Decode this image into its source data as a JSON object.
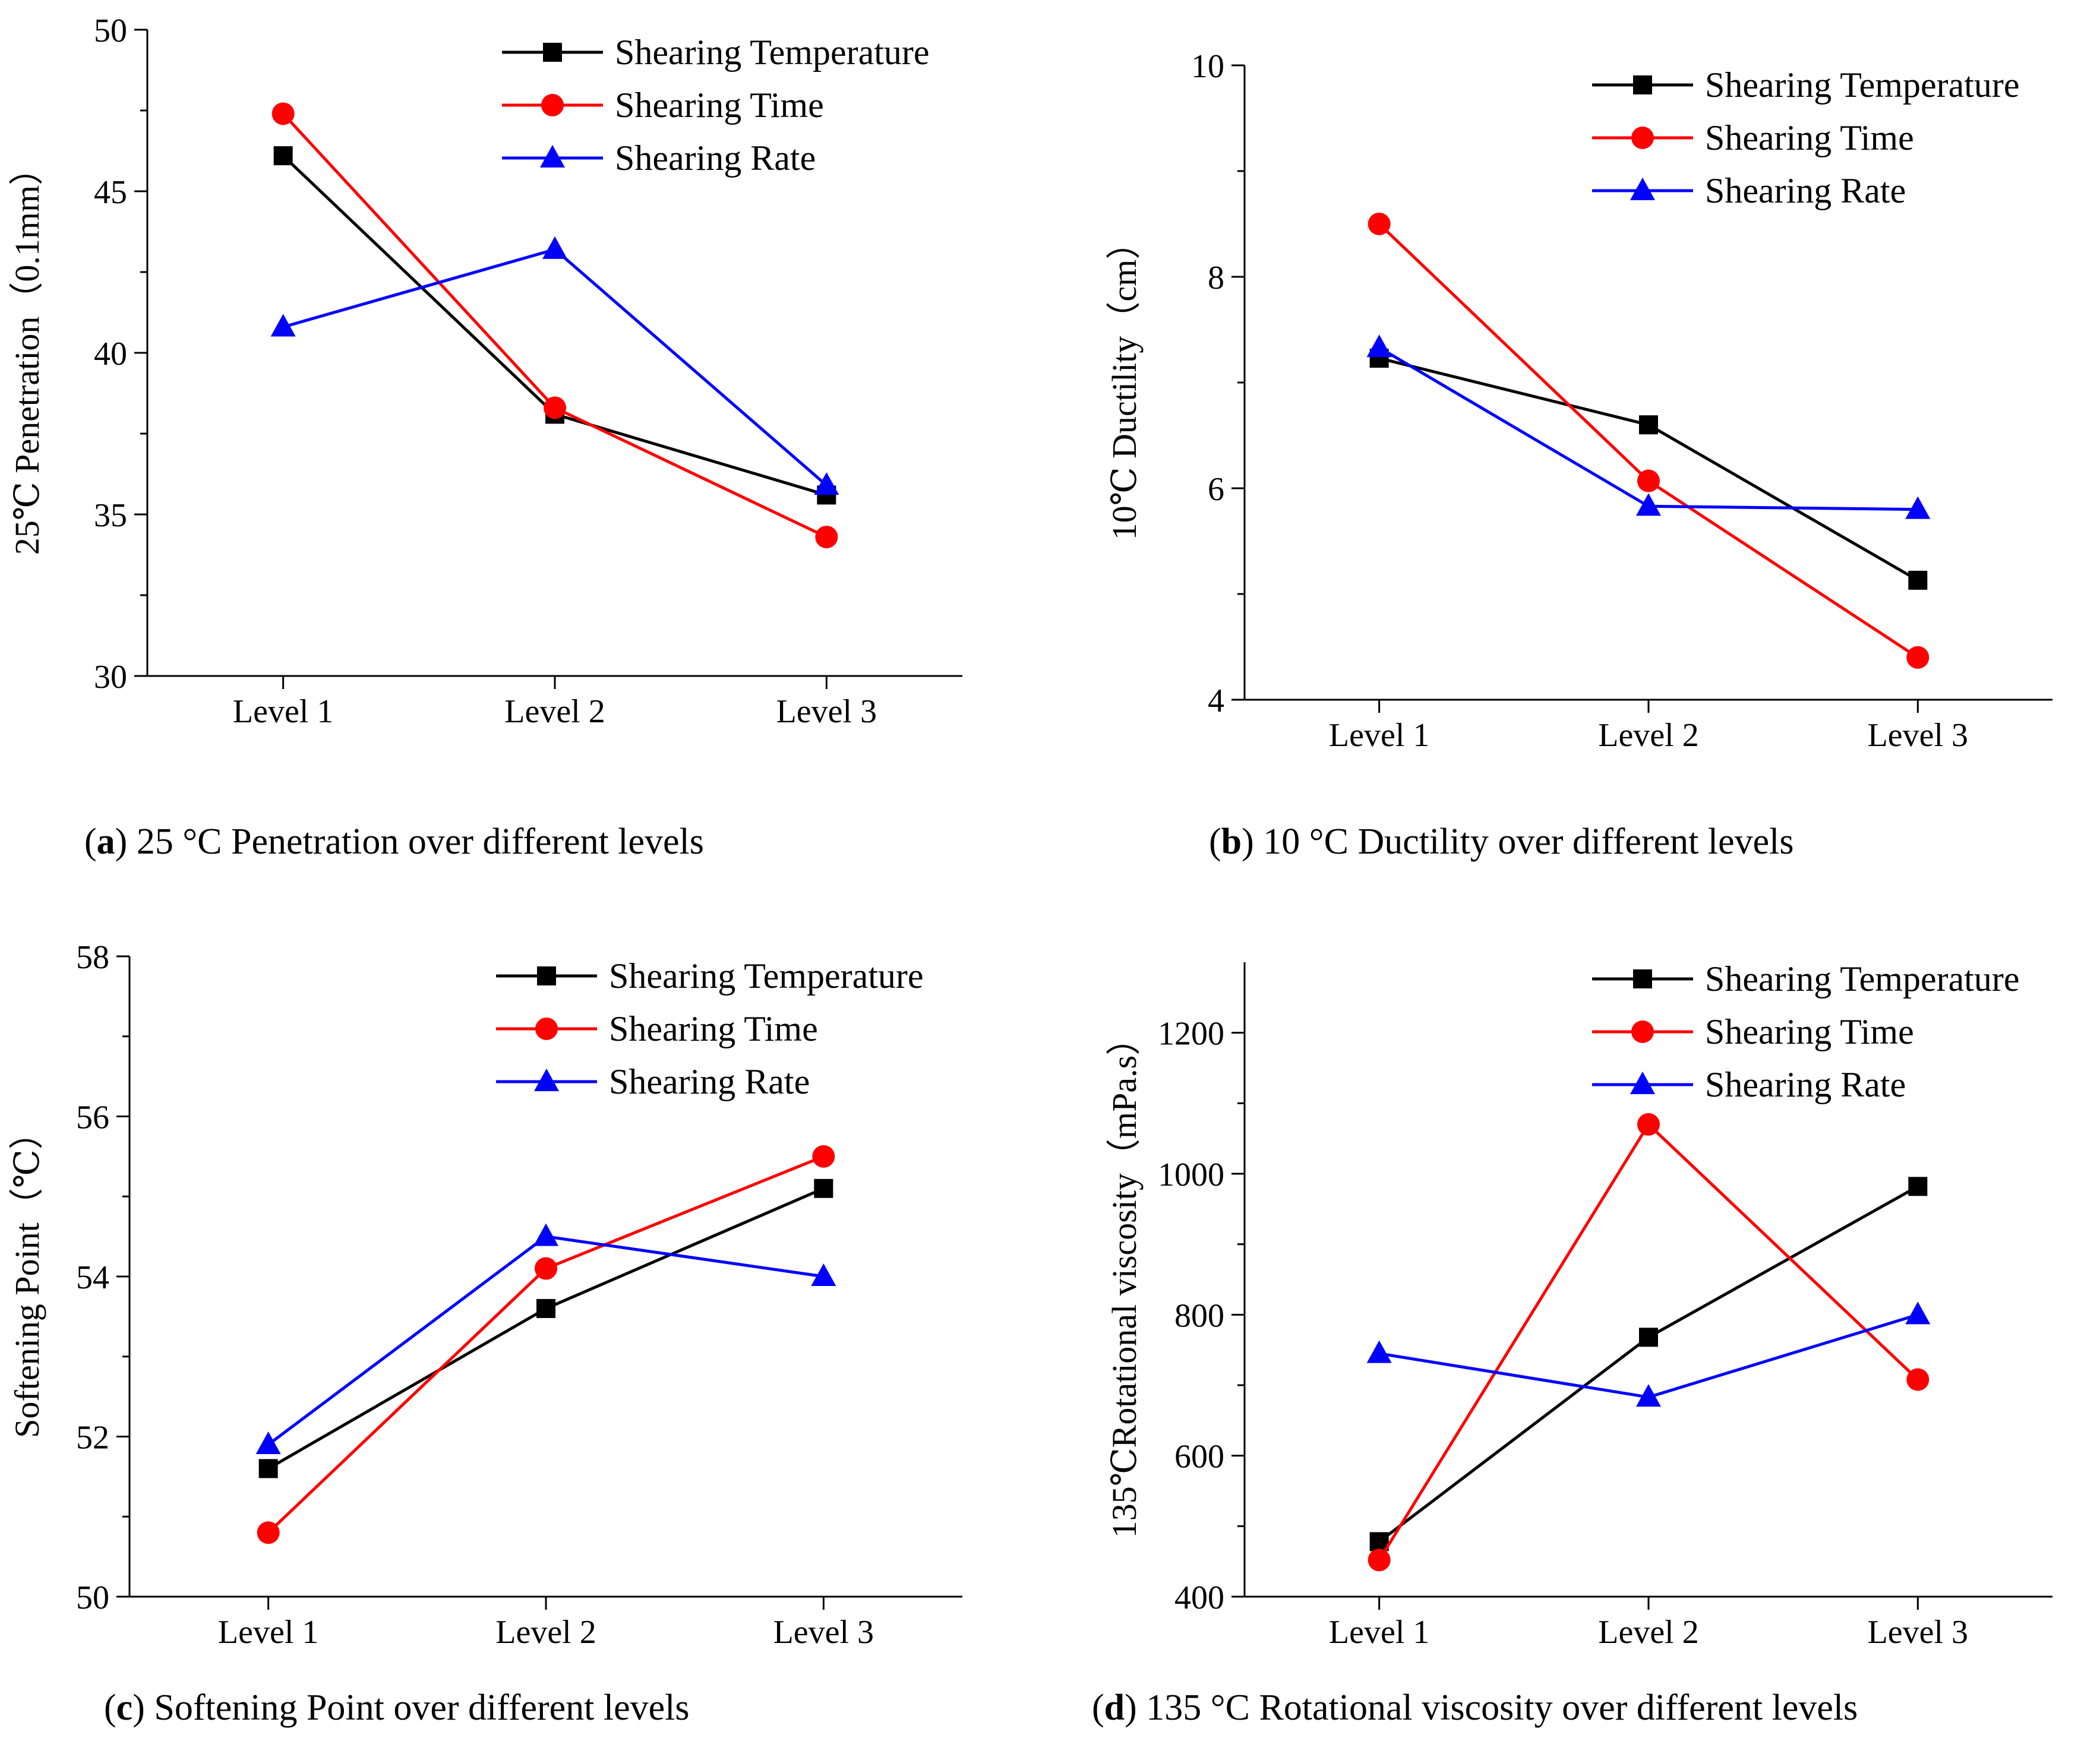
{
  "colors": {
    "temperature": "#000000",
    "time": "#ff0000",
    "rate": "#0000ff"
  },
  "captions": {
    "a": {
      "letter": "a",
      "text": "25 °C Penetration over different levels"
    },
    "b": {
      "letter": "b",
      "text": "10 °C Ductility over different levels"
    },
    "c": {
      "letter": "c",
      "text": "Softening Point over different levels"
    },
    "d": {
      "letter": "d",
      "text": "135 °C Rotational viscosity over different levels"
    }
  },
  "chart_data": [
    {
      "id": "a",
      "type": "line",
      "ylabel": "25℃ Penetration（0.1mm）",
      "categories": [
        "Level 1",
        "Level 2",
        "Level 3"
      ],
      "ylim": [
        30,
        50
      ],
      "yticks": [
        30,
        35,
        40,
        45,
        50
      ],
      "legend_position": "top-right",
      "series": [
        {
          "name": "Shearing Temperature",
          "marker": "square",
          "color": "#000000",
          "values": [
            46.1,
            38.1,
            35.6
          ]
        },
        {
          "name": "Shearing Time",
          "marker": "circle",
          "color": "#ff0000",
          "values": [
            47.4,
            38.3,
            34.3
          ]
        },
        {
          "name": "Shearing Rate",
          "marker": "triangle",
          "color": "#0000ff",
          "values": [
            40.8,
            43.2,
            35.9
          ]
        }
      ]
    },
    {
      "id": "b",
      "type": "line",
      "ylabel": "10℃ Ductility（cm）",
      "categories": [
        "Level 1",
        "Level 2",
        "Level 3"
      ],
      "ylim": [
        4,
        10
      ],
      "yticks": [
        4,
        6,
        8,
        10
      ],
      "legend_position": "top-right",
      "series": [
        {
          "name": "Shearing Temperature",
          "marker": "square",
          "color": "#000000",
          "values": [
            7.23,
            6.6,
            5.13
          ]
        },
        {
          "name": "Shearing Time",
          "marker": "circle",
          "color": "#ff0000",
          "values": [
            8.5,
            6.07,
            4.4
          ]
        },
        {
          "name": "Shearing Rate",
          "marker": "triangle",
          "color": "#0000ff",
          "values": [
            7.33,
            5.83,
            5.8
          ]
        }
      ]
    },
    {
      "id": "c",
      "type": "line",
      "ylabel": "Softening Point（℃）",
      "categories": [
        "Level 1",
        "Level 2",
        "Level 3"
      ],
      "ylim": [
        50,
        58
      ],
      "yticks": [
        50,
        52,
        54,
        56,
        58
      ],
      "legend_position": "top-right",
      "series": [
        {
          "name": "Shearing Temperature",
          "marker": "square",
          "color": "#000000",
          "values": [
            51.6,
            53.6,
            55.1
          ]
        },
        {
          "name": "Shearing Time",
          "marker": "circle",
          "color": "#ff0000",
          "values": [
            50.8,
            54.1,
            55.5
          ]
        },
        {
          "name": "Shearing Rate",
          "marker": "triangle",
          "color": "#0000ff",
          "values": [
            51.9,
            54.5,
            54.0
          ]
        }
      ]
    },
    {
      "id": "d",
      "type": "line",
      "ylabel": "135℃Rotational viscosity（mPa.s）",
      "categories": [
        "Level 1",
        "Level 2",
        "Level 3"
      ],
      "ylim": [
        400,
        1300
      ],
      "yticks": [
        400,
        600,
        800,
        1000,
        1200
      ],
      "legend_position": "top-right",
      "series": [
        {
          "name": "Shearing Temperature",
          "marker": "square",
          "color": "#000000",
          "values": [
            478,
            768,
            982
          ]
        },
        {
          "name": "Shearing Time",
          "marker": "circle",
          "color": "#ff0000",
          "values": [
            452,
            1070,
            708
          ]
        },
        {
          "name": "Shearing Rate",
          "marker": "triangle",
          "color": "#0000ff",
          "values": [
            745,
            683,
            800
          ]
        }
      ]
    }
  ]
}
